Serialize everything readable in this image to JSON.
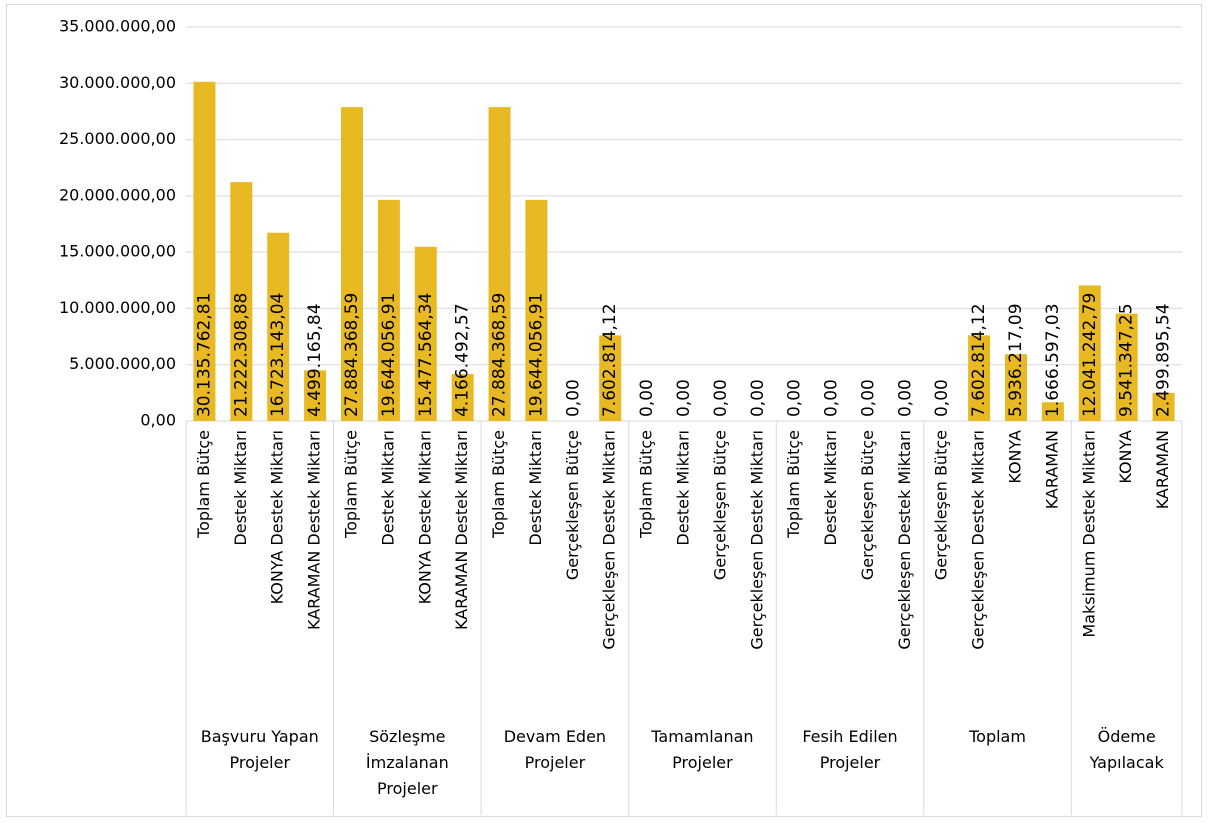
{
  "chart_data": {
    "type": "bar",
    "color": "#e8b923",
    "grid": true,
    "ylim": [
      0,
      35000000
    ],
    "yticks": [
      {
        "value": 0,
        "label": "0,00"
      },
      {
        "value": 5000000,
        "label": "5.000.000,00"
      },
      {
        "value": 10000000,
        "label": "10.000.000,00"
      },
      {
        "value": 15000000,
        "label": "15.000.000,00"
      },
      {
        "value": 20000000,
        "label": "20.000.000,00"
      },
      {
        "value": 25000000,
        "label": "25.000.000,00"
      },
      {
        "value": 30000000,
        "label": "30.000.000,00"
      },
      {
        "value": 35000000,
        "label": "35.000.000,00"
      }
    ],
    "groups": [
      {
        "name": "Başvuru Yapan Projeler",
        "categories": [
          "Toplam Bütçe",
          "Destek Miktarı",
          "KONYA Destek Miktarı",
          "KARAMAN Destek Miktarı"
        ],
        "values": [
          30135762.81,
          21222308.88,
          16723143.04,
          4499165.84
        ],
        "value_labels": [
          "30.135.762,81",
          "21.222.308,88",
          "16.723.143,04",
          "4.499.165,84"
        ]
      },
      {
        "name": "Sözleşme İmzalanan Projeler",
        "categories": [
          "Toplam Bütçe",
          "Destek Miktarı",
          "KONYA Destek Miktarı",
          "KARAMAN Destek Miktarı"
        ],
        "values": [
          27884368.59,
          19644056.91,
          15477564.34,
          4166492.57
        ],
        "value_labels": [
          "27.884.368,59",
          "19.644.056,91",
          "15.477.564,34",
          "4.166.492,57"
        ]
      },
      {
        "name": "Devam Eden Projeler",
        "categories": [
          "Toplam Bütçe",
          "Destek Miktarı",
          "Gerçekleşen Bütçe",
          "Gerçekleşen Destek Miktarı"
        ],
        "values": [
          27884368.59,
          19644056.91,
          0,
          7602814.12
        ],
        "value_labels": [
          "27.884.368,59",
          "19.644.056,91",
          "0,00",
          "7.602.814,12"
        ]
      },
      {
        "name": "Tamamlanan Projeler",
        "categories": [
          "Toplam Bütçe",
          "Destek Miktarı",
          "Gerçekleşen Bütçe",
          "Gerçekleşen Destek Miktarı"
        ],
        "values": [
          0,
          0,
          0,
          0
        ],
        "value_labels": [
          "0,00",
          "0,00",
          "0,00",
          "0,00"
        ]
      },
      {
        "name": "Fesih Edilen Projeler",
        "categories": [
          "Toplam Bütçe",
          "Destek Miktarı",
          "Gerçekleşen Bütçe",
          "Gerçekleşen Destek Miktarı"
        ],
        "values": [
          0,
          0,
          0,
          0
        ],
        "value_labels": [
          "0,00",
          "0,00",
          "0,00",
          "0,00"
        ]
      },
      {
        "name": "Toplam",
        "categories": [
          "Gerçekleşen Bütçe",
          "Gerçekleşen Destek Miktarı",
          "KONYA",
          "KARAMAN"
        ],
        "values": [
          0,
          7602814.12,
          5936217.09,
          1666597.03
        ],
        "value_labels": [
          "0,00",
          "7.602.814,12",
          "5.936.217,09",
          "1.666.597,03"
        ]
      },
      {
        "name": "Ödeme Yapılacak",
        "categories": [
          "Maksimum Destek Miktarı",
          "KONYA",
          "KARAMAN"
        ],
        "values": [
          12041242.79,
          9541347.25,
          2499895.54
        ],
        "value_labels": [
          "12.041.242,79",
          "9.541.347,25",
          "2.499.895,54"
        ]
      }
    ]
  }
}
